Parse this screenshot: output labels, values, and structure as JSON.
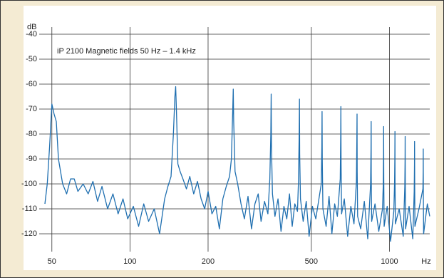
{
  "chart_data": {
    "type": "line",
    "annotation": "iP 2100 Magnetic fields 50 Hz – 1.4 kHz",
    "y_label": "dB",
    "x_label": "Hz",
    "log_x": true,
    "grid": true,
    "xlim": [
      47,
      1430
    ],
    "ylim": [
      -126,
      -38
    ],
    "xticks": [
      50,
      100,
      200,
      500,
      1000
    ],
    "yticks": [
      -40,
      -50,
      -60,
      -70,
      -80,
      -90,
      -100,
      -110,
      -120
    ],
    "color": "#1f6fb0",
    "x": [
      47,
      48,
      49,
      50,
      51,
      52,
      53,
      55,
      57,
      59,
      61,
      63,
      66,
      69,
      72,
      75,
      78,
      82,
      86,
      90,
      94,
      98,
      103,
      108,
      113,
      118,
      124,
      130,
      136,
      140,
      144,
      147,
      149,
      150,
      151,
      153,
      156,
      160,
      165,
      170,
      176,
      182,
      188,
      194,
      200,
      207,
      214,
      221,
      228,
      235,
      242,
      246,
      249,
      250,
      251,
      254,
      260,
      268,
      276,
      285,
      294,
      303,
      312,
      320,
      330,
      340,
      346,
      349,
      350,
      351,
      354,
      362,
      372,
      382,
      392,
      402,
      412,
      422,
      432,
      442,
      446,
      449,
      450,
      451,
      454,
      465,
      478,
      490,
      505,
      520,
      535,
      546,
      549,
      550,
      551,
      554,
      570,
      585,
      600,
      615,
      630,
      646,
      649,
      650,
      651,
      654,
      670,
      690,
      710,
      730,
      746,
      749,
      750,
      751,
      754,
      775,
      800,
      825,
      846,
      849,
      850,
      851,
      854,
      880,
      910,
      940,
      946,
      949,
      950,
      951,
      954,
      980,
      1010,
      1040,
      1046,
      1049,
      1050,
      1051,
      1054,
      1090,
      1130,
      1146,
      1149,
      1150,
      1151,
      1154,
      1190,
      1230,
      1246,
      1249,
      1250,
      1251,
      1254,
      1300,
      1346,
      1349,
      1350,
      1351,
      1354,
      1400,
      1430
    ],
    "values": [
      -108,
      -100,
      -85,
      -68,
      -72,
      -75,
      -90,
      -100,
      -104,
      -98,
      -98,
      -103,
      -100,
      -104,
      -99,
      -107,
      -101,
      -110,
      -104,
      -112,
      -106,
      -114,
      -109,
      -117,
      -108,
      -115,
      -110,
      -120,
      -106,
      -101,
      -97,
      -80,
      -65,
      -61,
      -70,
      -92,
      -95,
      -98,
      -102,
      -97,
      -104,
      -99,
      -106,
      -110,
      -103,
      -112,
      -109,
      -118,
      -106,
      -101,
      -97,
      -90,
      -70,
      -62,
      -75,
      -95,
      -100,
      -108,
      -114,
      -105,
      -118,
      -108,
      -104,
      -115,
      -107,
      -112,
      -98,
      -80,
      -64,
      -85,
      -104,
      -113,
      -106,
      -119,
      -109,
      -114,
      -104,
      -117,
      -108,
      -111,
      -99,
      -80,
      -66,
      -88,
      -106,
      -115,
      -107,
      -121,
      -109,
      -114,
      -106,
      -100,
      -85,
      -71,
      -90,
      -110,
      -117,
      -105,
      -120,
      -108,
      -113,
      -98,
      -80,
      -69,
      -92,
      -112,
      -106,
      -121,
      -109,
      -116,
      -99,
      -83,
      -72,
      -95,
      -113,
      -118,
      -107,
      -122,
      -100,
      -86,
      -75,
      -96,
      -115,
      -108,
      -119,
      -110,
      -101,
      -88,
      -77,
      -98,
      -117,
      -109,
      -123,
      -111,
      -100,
      -90,
      -79,
      -99,
      -116,
      -110,
      -121,
      -101,
      -90,
      -81,
      -100,
      -118,
      -109,
      -122,
      -103,
      -92,
      -83,
      -101,
      -117,
      -110,
      -102,
      -95,
      -86,
      -103,
      -120,
      -108,
      -113
    ]
  }
}
